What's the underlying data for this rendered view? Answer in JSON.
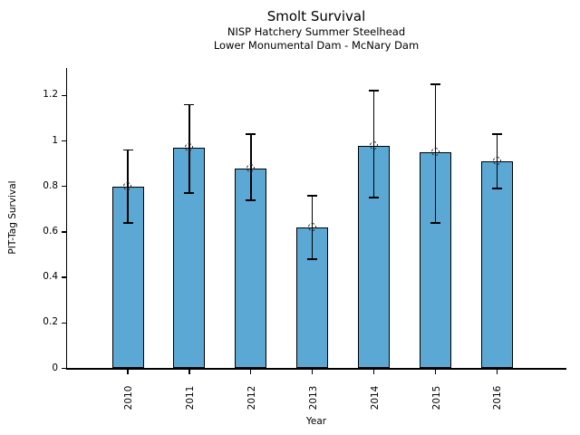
{
  "figure": {
    "title": "Smolt Survival",
    "subtitle_line1": "NISP Hatchery Summer Steelhead",
    "subtitle_line2": "Lower Monumental Dam - McNary Dam"
  },
  "chart_data": {
    "type": "bar",
    "title": "Smolt Survival",
    "subtitle": [
      "NISP Hatchery Summer Steelhead",
      "Lower Monumental Dam - McNary Dam"
    ],
    "xlabel": "Year",
    "ylabel": "PIT-Tag Survival",
    "categories": [
      "2010",
      "2011",
      "2012",
      "2013",
      "2014",
      "2015",
      "2016"
    ],
    "values": [
      0.8,
      0.97,
      0.88,
      0.62,
      0.98,
      0.95,
      0.91
    ],
    "error_low": [
      0.64,
      0.77,
      0.74,
      0.48,
      0.75,
      0.64,
      0.79
    ],
    "error_high": [
      0.96,
      1.16,
      1.03,
      0.76,
      1.22,
      1.25,
      1.03
    ],
    "ytick_labels": [
      "0",
      "0.2",
      "0.4",
      "0.6",
      "0.8",
      "1",
      "1.2"
    ],
    "ytick_values": [
      0,
      0.2,
      0.4,
      0.6,
      0.8,
      1.0,
      1.2
    ],
    "ylim": [
      0,
      1.32
    ],
    "grid": false,
    "legend": null,
    "marker": "open-circle",
    "bar_color": "#5BA8D4",
    "bar_edge_color": "#000000",
    "error_color": "#000000"
  }
}
